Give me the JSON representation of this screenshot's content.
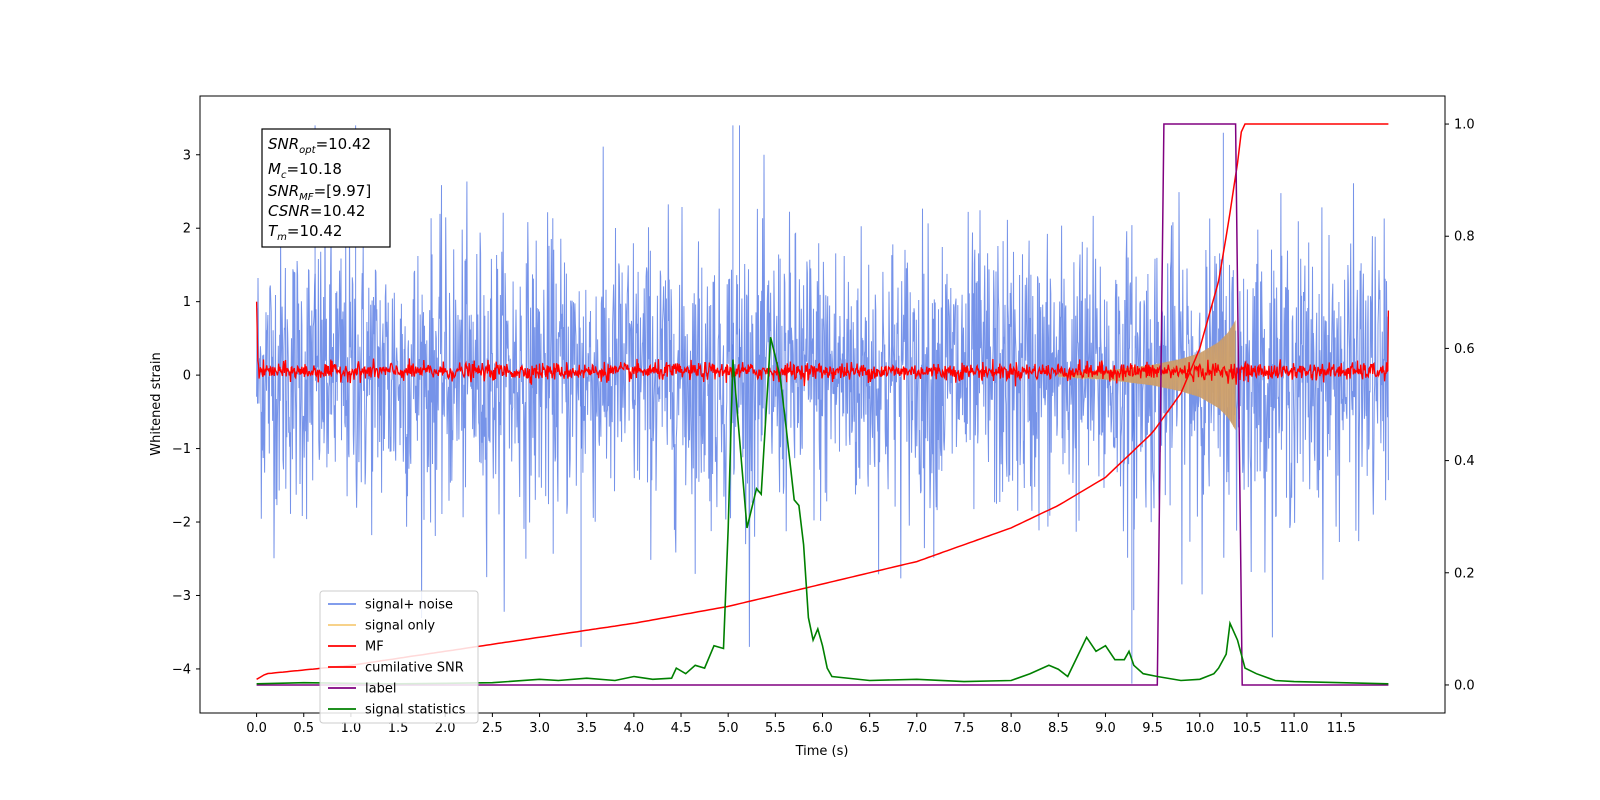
{
  "chart_data": {
    "type": "line",
    "xlabel": "Time (s)",
    "ylabel": "Whitened strain",
    "xlim": [
      -0.6,
      12.6
    ],
    "ylim": [
      -4.6,
      3.8
    ],
    "y2lim": [
      -0.05,
      1.05
    ],
    "x_ticks": [
      "0.0",
      "0.5",
      "1.0",
      "1.5",
      "2.0",
      "2.5",
      "3.0",
      "3.5",
      "4.0",
      "4.5",
      "5.0",
      "5.5",
      "6.0",
      "6.5",
      "7.0",
      "7.5",
      "8.0",
      "8.5",
      "9.0",
      "9.5",
      "10.0",
      "10.5",
      "11.0",
      "11.5"
    ],
    "y_ticks": [
      "3",
      "2",
      "1",
      "0",
      "−1",
      "−2",
      "−3",
      "−4"
    ],
    "y2_ticks": [
      "1.0",
      "0.8",
      "0.6",
      "0.4",
      "0.2",
      "0.0"
    ],
    "grid": false,
    "legend_position": "lower-left",
    "stats_box": {
      "lines": [
        {
          "sym": "SNR",
          "sub": "opt",
          "val": "=10.42"
        },
        {
          "sym": "M",
          "sub": "c",
          "val": "=10.18"
        },
        {
          "sym": "SNR",
          "sub": "MF",
          "val": "=[9.97]"
        },
        {
          "sym": "CSNR",
          "sub": "",
          "val": "=10.42"
        },
        {
          "sym": "T",
          "sub": "m",
          "val": "=10.42"
        }
      ]
    },
    "series": [
      {
        "name": "signal+ noise",
        "color": "#4169e1",
        "axis": "left",
        "kind": "noise",
        "x_range": [
          0.0,
          12.0
        ],
        "amplitude_std": 1.0,
        "extremes": [
          -3.7,
          3.4
        ]
      },
      {
        "name": "signal only",
        "color": "#f5c66b",
        "axis": "left",
        "kind": "chirp",
        "x_range": [
          8.5,
          10.38
        ],
        "envelope": [
          [
            8.5,
            0.02
          ],
          [
            9.0,
            0.06
          ],
          [
            9.5,
            0.14
          ],
          [
            9.8,
            0.22
          ],
          [
            10.0,
            0.3
          ],
          [
            10.2,
            0.45
          ],
          [
            10.3,
            0.58
          ],
          [
            10.38,
            0.75
          ]
        ]
      },
      {
        "name": "MF",
        "color": "#ff0000",
        "axis": "left",
        "kind": "noise",
        "x_range": [
          0.0,
          12.0
        ],
        "center": 0.05,
        "amplitude_std": 0.06,
        "edge_spikes": [
          [
            0.0,
            1.0
          ],
          [
            12.0,
            0.88
          ]
        ]
      },
      {
        "name": "cumilative SNR",
        "color": "#ff0000",
        "axis": "right",
        "kind": "curve",
        "points": [
          [
            0.0,
            0.01
          ],
          [
            0.1,
            0.02
          ],
          [
            1.0,
            0.035
          ],
          [
            2.0,
            0.06
          ],
          [
            3.0,
            0.085
          ],
          [
            4.0,
            0.11
          ],
          [
            5.0,
            0.14
          ],
          [
            6.0,
            0.18
          ],
          [
            7.0,
            0.22
          ],
          [
            7.5,
            0.25
          ],
          [
            8.0,
            0.28
          ],
          [
            8.5,
            0.32
          ],
          [
            9.0,
            0.37
          ],
          [
            9.5,
            0.45
          ],
          [
            9.8,
            0.52
          ],
          [
            10.0,
            0.6
          ],
          [
            10.2,
            0.72
          ],
          [
            10.3,
            0.82
          ],
          [
            10.4,
            0.93
          ],
          [
            10.45,
            1.0
          ],
          [
            12.0,
            1.0
          ]
        ]
      },
      {
        "name": "label",
        "color": "#800080",
        "axis": "right",
        "kind": "curve",
        "points": [
          [
            0.0,
            0.0
          ],
          [
            9.55,
            0.0
          ],
          [
            9.62,
            1.0
          ],
          [
            10.38,
            1.0
          ],
          [
            10.45,
            0.0
          ],
          [
            12.0,
            0.0
          ]
        ]
      },
      {
        "name": "signal statistics",
        "color": "#008000",
        "axis": "right",
        "kind": "curve",
        "points": [
          [
            0.0,
            0.002
          ],
          [
            0.5,
            0.004
          ],
          [
            1.0,
            0.003
          ],
          [
            1.5,
            0.002
          ],
          [
            2.0,
            0.003
          ],
          [
            2.5,
            0.004
          ],
          [
            3.0,
            0.01
          ],
          [
            3.2,
            0.008
          ],
          [
            3.5,
            0.012
          ],
          [
            3.8,
            0.008
          ],
          [
            4.0,
            0.015
          ],
          [
            4.2,
            0.01
          ],
          [
            4.4,
            0.012
          ],
          [
            4.45,
            0.03
          ],
          [
            4.55,
            0.02
          ],
          [
            4.65,
            0.035
          ],
          [
            4.75,
            0.03
          ],
          [
            4.85,
            0.07
          ],
          [
            4.95,
            0.065
          ],
          [
            5.0,
            0.28
          ],
          [
            5.05,
            0.58
          ],
          [
            5.15,
            0.38
          ],
          [
            5.2,
            0.28
          ],
          [
            5.3,
            0.35
          ],
          [
            5.35,
            0.34
          ],
          [
            5.45,
            0.62
          ],
          [
            5.55,
            0.55
          ],
          [
            5.6,
            0.48
          ],
          [
            5.7,
            0.33
          ],
          [
            5.75,
            0.32
          ],
          [
            5.8,
            0.25
          ],
          [
            5.85,
            0.12
          ],
          [
            5.9,
            0.08
          ],
          [
            5.95,
            0.1
          ],
          [
            6.0,
            0.07
          ],
          [
            6.05,
            0.03
          ],
          [
            6.1,
            0.015
          ],
          [
            6.5,
            0.008
          ],
          [
            7.0,
            0.01
          ],
          [
            7.5,
            0.006
          ],
          [
            8.0,
            0.008
          ],
          [
            8.2,
            0.02
          ],
          [
            8.4,
            0.035
          ],
          [
            8.5,
            0.028
          ],
          [
            8.6,
            0.015
          ],
          [
            8.7,
            0.05
          ],
          [
            8.8,
            0.085
          ],
          [
            8.9,
            0.06
          ],
          [
            9.0,
            0.07
          ],
          [
            9.1,
            0.045
          ],
          [
            9.2,
            0.045
          ],
          [
            9.25,
            0.06
          ],
          [
            9.3,
            0.035
          ],
          [
            9.4,
            0.02
          ],
          [
            9.55,
            0.015
          ],
          [
            9.8,
            0.008
          ],
          [
            10.0,
            0.01
          ],
          [
            10.15,
            0.02
          ],
          [
            10.2,
            0.03
          ],
          [
            10.28,
            0.055
          ],
          [
            10.32,
            0.11
          ],
          [
            10.4,
            0.08
          ],
          [
            10.48,
            0.03
          ],
          [
            10.6,
            0.02
          ],
          [
            10.8,
            0.008
          ],
          [
            11.0,
            0.006
          ],
          [
            11.5,
            0.004
          ],
          [
            12.0,
            0.002
          ]
        ]
      }
    ]
  }
}
